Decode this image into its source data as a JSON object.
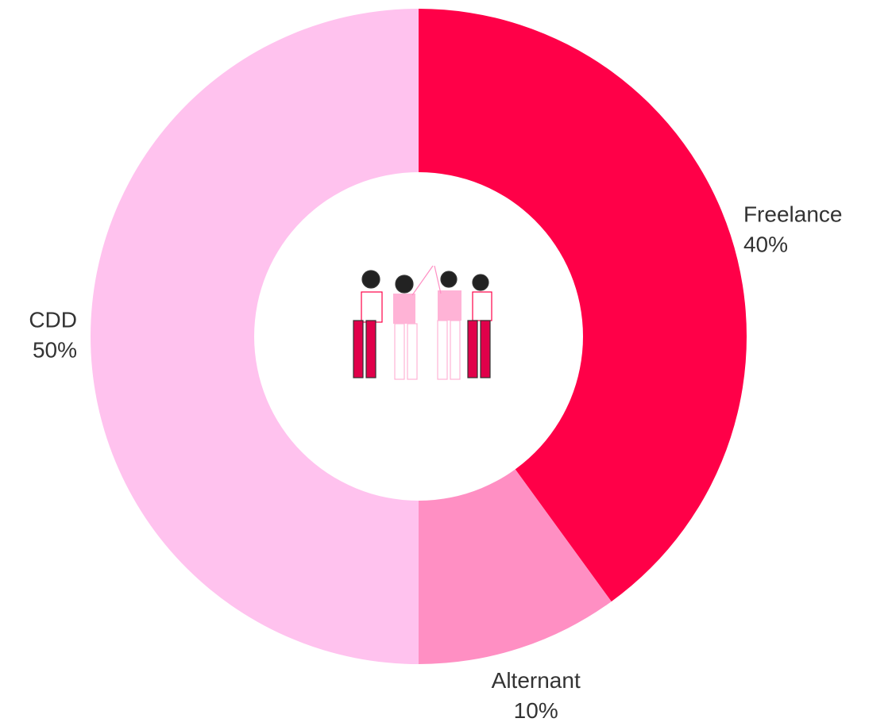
{
  "chart_data": {
    "type": "donut",
    "categories": [
      "Freelance",
      "Alternant",
      "CDD"
    ],
    "values": [
      40,
      10,
      50
    ],
    "value_labels": [
      "40%",
      "10%",
      "50%"
    ],
    "colors": [
      "#ff0048",
      "#ff8fc3",
      "#ffc2ee"
    ]
  }
}
